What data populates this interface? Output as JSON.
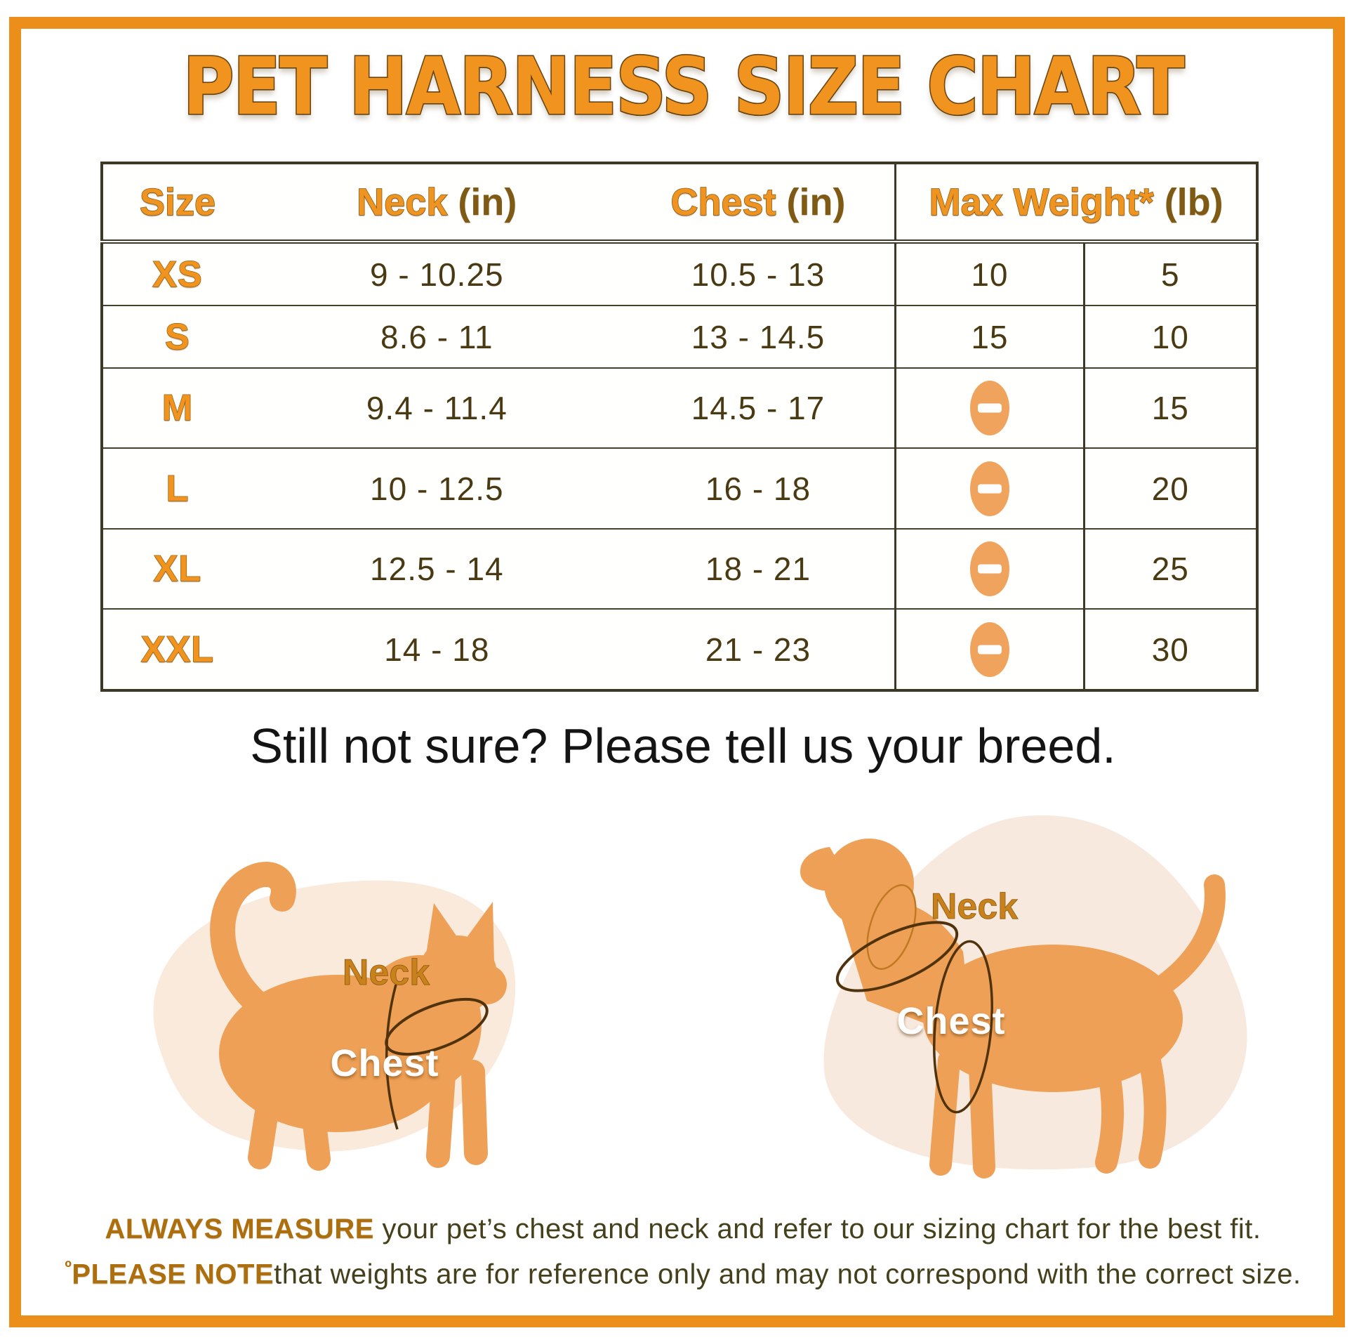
{
  "title": "PET HARNESS SIZE CHART",
  "table": {
    "headers": [
      {
        "label": "Size",
        "unit": ""
      },
      {
        "label": "Neck",
        "unit": "(in)"
      },
      {
        "label": "Chest",
        "unit": "(in)"
      },
      {
        "label": "Max Weight*",
        "unit": "(lb)"
      }
    ],
    "rows": [
      {
        "size": "XS",
        "neck": "9 - 10.25",
        "chest": "10.5 - 13",
        "weight_cat": "10",
        "weight_dog": "5"
      },
      {
        "size": "S",
        "neck": "8.6 - 11",
        "chest": "13 - 14.5",
        "weight_cat": "15",
        "weight_dog": "10"
      },
      {
        "size": "M",
        "neck": "9.4 - 11.4",
        "chest": "14.5 - 17",
        "weight_cat": null,
        "weight_dog": "15"
      },
      {
        "size": "L",
        "neck": "10 - 12.5",
        "chest": "16 - 18",
        "weight_cat": null,
        "weight_dog": "20"
      },
      {
        "size": "XL",
        "neck": "12.5 - 14",
        "chest": "18 - 21",
        "weight_cat": null,
        "weight_dog": "25"
      },
      {
        "size": "XXL",
        "neck": "14 - 18",
        "chest": "21 - 23",
        "weight_cat": null,
        "weight_dog": "30"
      }
    ]
  },
  "subtitle": "Still not sure? Please tell us your breed.",
  "diagram_labels": {
    "neck": "Neck",
    "chest": "Chest"
  },
  "footer": {
    "line1_bold": "ALWAYS MEASURE",
    "line1_rest": " your pet’s chest and neck and refer to our sizing chart for the best fit.",
    "line2_marker": "º",
    "line2_bold": "PLEASE NOTE",
    "line2_rest": "that weights are for reference only and may not correspond with the correct size."
  },
  "icons": {
    "not_applicable": "minus-icon"
  },
  "colors": {
    "frame_orange": "#EC8E1A",
    "title_orange": "#F0941F",
    "title_outline": "#6B4612",
    "table_line": "#3E3926",
    "cell_text": "#4A3A14",
    "header_unit": "#7E5A14",
    "minus_icon": "#F0A35C",
    "animal_orange": "#EFA057",
    "blob_peach": "#F9EADC",
    "loop_line": "#50330D",
    "neck_label": "#C8811B",
    "chest_label": "#FFFFFF",
    "footer_bold": "#AD6E0E",
    "footer_text": "#45401C"
  }
}
